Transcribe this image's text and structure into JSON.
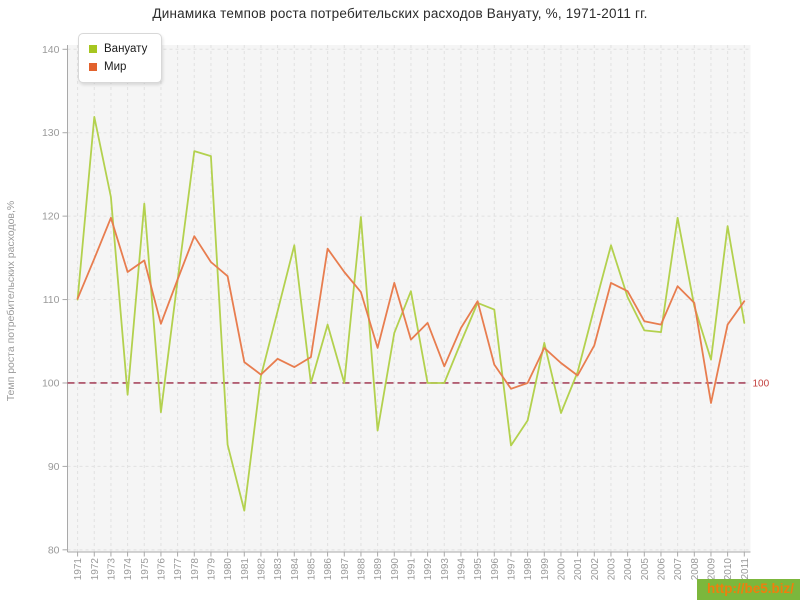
{
  "title": "Динамика темпов роста потребительских расходов Вануату, %, 1971-2011 гг.",
  "y_axis_title": "Темп роста потребительских расходов,%",
  "watermark_text": "http://be5.biz/",
  "watermark_bg": "#7cb73c",
  "watermark_fg": "#ef7e0e",
  "legend": {
    "items": [
      {
        "label": "Вануату",
        "marker_color": "#a6c620"
      },
      {
        "label": "Мир",
        "marker_color": "#e2622d"
      }
    ]
  },
  "reference_line": {
    "value": 100,
    "label": "100",
    "line_color": "#a84860",
    "label_color": "#c3413f"
  },
  "chart_data": {
    "type": "line",
    "title": "Динамика темпов роста потребительских расходов Вануату, %, 1971-2011 гг.",
    "ylabel": "Темп роста потребительских расходов,%",
    "ylim": [
      80,
      140
    ],
    "yticks": [
      80,
      90,
      100,
      110,
      120,
      130,
      140
    ],
    "grid": "dashed",
    "legend_position": "top-left",
    "x": [
      1971,
      1972,
      1973,
      1974,
      1975,
      1976,
      1977,
      1978,
      1979,
      1980,
      1981,
      1982,
      1983,
      1984,
      1985,
      1986,
      1987,
      1988,
      1989,
      1990,
      1991,
      1992,
      1993,
      1994,
      1995,
      1996,
      1997,
      1998,
      1999,
      2000,
      2001,
      2002,
      2003,
      2004,
      2005,
      2006,
      2007,
      2008,
      2009,
      2010,
      2011
    ],
    "series": [
      {
        "name": "Вануату",
        "color": "#b3d14e",
        "values": [
          110.0,
          131.9,
          122.3,
          98.6,
          121.5,
          96.5,
          112.3,
          127.8,
          127.2,
          92.6,
          84.7,
          100.8,
          108.6,
          116.5,
          100.0,
          107.0,
          100.0,
          119.9,
          94.3,
          106.0,
          111.0,
          100.0,
          100.0,
          104.9,
          109.6,
          108.8,
          92.5,
          95.5,
          104.8,
          96.4,
          101.3,
          109.0,
          116.5,
          110.3,
          106.3,
          106.1,
          119.8,
          109.2,
          102.8,
          118.8,
          107.2
        ]
      },
      {
        "name": "Мир",
        "color": "#e87d4f",
        "values": [
          110.1,
          114.9,
          119.8,
          113.3,
          114.7,
          107.1,
          112.4,
          117.6,
          114.5,
          112.8,
          102.5,
          101.0,
          102.9,
          101.9,
          103.1,
          116.1,
          113.3,
          110.9,
          104.2,
          112.0,
          105.2,
          107.2,
          102.0,
          106.6,
          109.8,
          102.2,
          99.3,
          100.0,
          104.2,
          102.4,
          100.9,
          104.5,
          112.0,
          111.0,
          107.4,
          107.0,
          111.6,
          109.6,
          97.6,
          107.0,
          109.8
        ]
      }
    ]
  }
}
